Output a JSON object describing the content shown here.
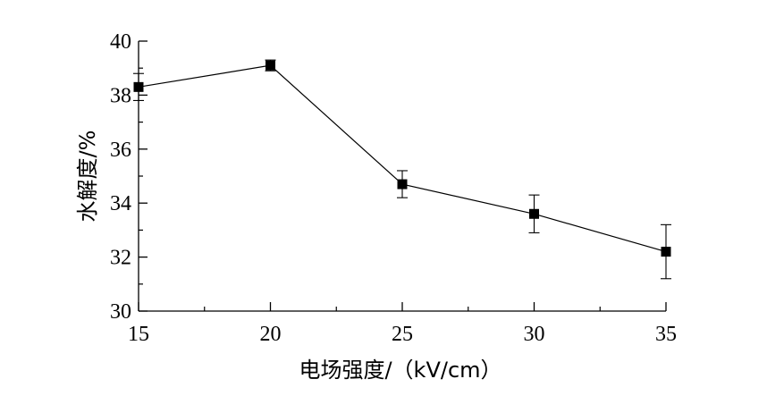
{
  "chart_data": {
    "type": "line",
    "title": "",
    "xlabel": "电场强度/（kV/cm）",
    "ylabel": "水解度/%",
    "x": [
      15,
      20,
      25,
      30,
      35
    ],
    "series": [
      {
        "values": [
          38.3,
          39.1,
          34.7,
          33.6,
          32.2
        ],
        "error": [
          0.5,
          0.2,
          0.5,
          0.7,
          1.0
        ],
        "color": "#000000",
        "marker": "square"
      }
    ],
    "xticks": [
      "15",
      "20",
      "25",
      "30",
      "35"
    ],
    "yticks": [
      "30",
      "32",
      "34",
      "36",
      "38",
      "40"
    ],
    "xlim": [
      15,
      35
    ],
    "ylim": [
      30,
      40
    ],
    "grid": false,
    "legend": "none"
  }
}
